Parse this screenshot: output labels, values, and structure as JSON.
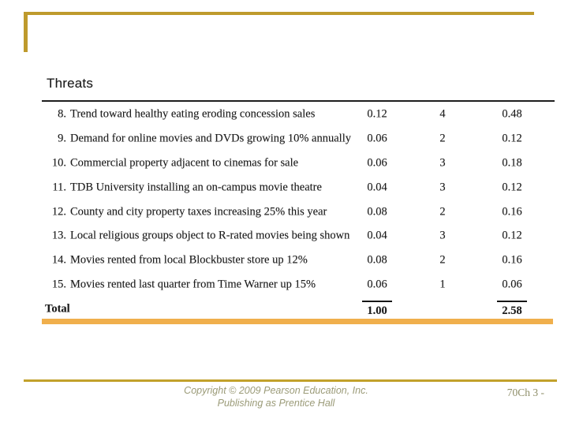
{
  "slide": {
    "title": "Threats",
    "table": {
      "rows": [
        {
          "num": "8.",
          "text": "Trend toward healthy eating eroding concession sales",
          "weight": "0.12",
          "rating": "4",
          "score": "0.48"
        },
        {
          "num": "9.",
          "text": "Demand for online movies and DVDs growing 10% annually",
          "weight": "0.06",
          "rating": "2",
          "score": "0.12"
        },
        {
          "num": "10.",
          "text": "Commercial property adjacent to cinemas for sale",
          "weight": "0.06",
          "rating": "3",
          "score": "0.18"
        },
        {
          "num": "11.",
          "text": "TDB University installing an on-campus movie theatre",
          "weight": "0.04",
          "rating": "3",
          "score": "0.12"
        },
        {
          "num": "12.",
          "text": "County and city property taxes increasing 25% this year",
          "weight": "0.08",
          "rating": "2",
          "score": "0.16"
        },
        {
          "num": "13.",
          "text": "Local religious groups object to R-rated movies being shown",
          "weight": "0.04",
          "rating": "3",
          "score": "0.12"
        },
        {
          "num": "14.",
          "text": "Movies rented from local Blockbuster store up 12%",
          "weight": "0.08",
          "rating": "2",
          "score": "0.16"
        },
        {
          "num": "15.",
          "text": "Movies rented last quarter from Time Warner up 15%",
          "weight": "0.06",
          "rating": "1",
          "score": "0.06"
        }
      ],
      "total": {
        "label": "Total",
        "weight": "1.00",
        "rating": "",
        "score": "2.58"
      }
    },
    "footer": {
      "copyright_line1": "Copyright © 2009 Pearson Education, Inc.",
      "copyright_line2": "Publishing as Prentice Hall",
      "page_number": "70Ch 3 -"
    },
    "colors": {
      "frame_gold": "#BE9A2C",
      "table_bar_gold": "#F0AF4C",
      "footer_line_gold": "#C2A12B",
      "footer_text": "#9B9B78"
    }
  }
}
